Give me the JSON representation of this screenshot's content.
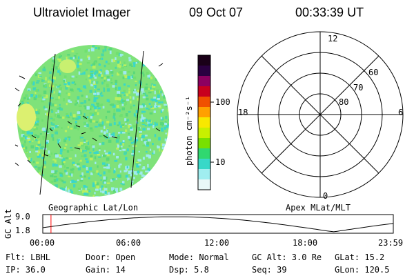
{
  "header": {
    "title": "Ultraviolet Imager",
    "date": "09 Oct 07",
    "time": "00:33:39 UT"
  },
  "colorbar": {
    "label": "photon cm⁻²s⁻¹",
    "ticks": [
      "100",
      "10"
    ],
    "colors": [
      "#1a0018",
      "#2a0040",
      "#8c0060",
      "#c8001e",
      "#f05000",
      "#ffa000",
      "#f8e800",
      "#c8f000",
      "#78e000",
      "#30d870",
      "#38d8c8",
      "#a0eef0",
      "#e8f8f8"
    ]
  },
  "left_panel": {
    "caption": "Geographic Lat/Lon"
  },
  "polar": {
    "caption": "Apex MLat/MLT",
    "mlt_labels": [
      "12",
      "18",
      "6",
      "0"
    ],
    "lat_labels": [
      "60",
      "70",
      "80"
    ]
  },
  "timeline": {
    "axis_label": "GC Alt",
    "y_ticks": [
      "9.0",
      "1.8"
    ],
    "x_ticks": [
      "00:00",
      "06:00",
      "12:00",
      "18:00",
      "23:59"
    ],
    "current_fraction": 0.0234,
    "marker_color": "#ff0000"
  },
  "status": {
    "flt": "Flt: LBHL",
    "ip": "IP: 36.0",
    "door": "Door: Open",
    "gain": "Gain: 14",
    "mode": "Mode: Normal",
    "dsp": "Dsp:      5.8",
    "gcalt": "GC Alt: 3.0 Re",
    "seq": "Seq: 39",
    "glat": "GLat:   15.2",
    "glon": "GLon: 120.5"
  }
}
